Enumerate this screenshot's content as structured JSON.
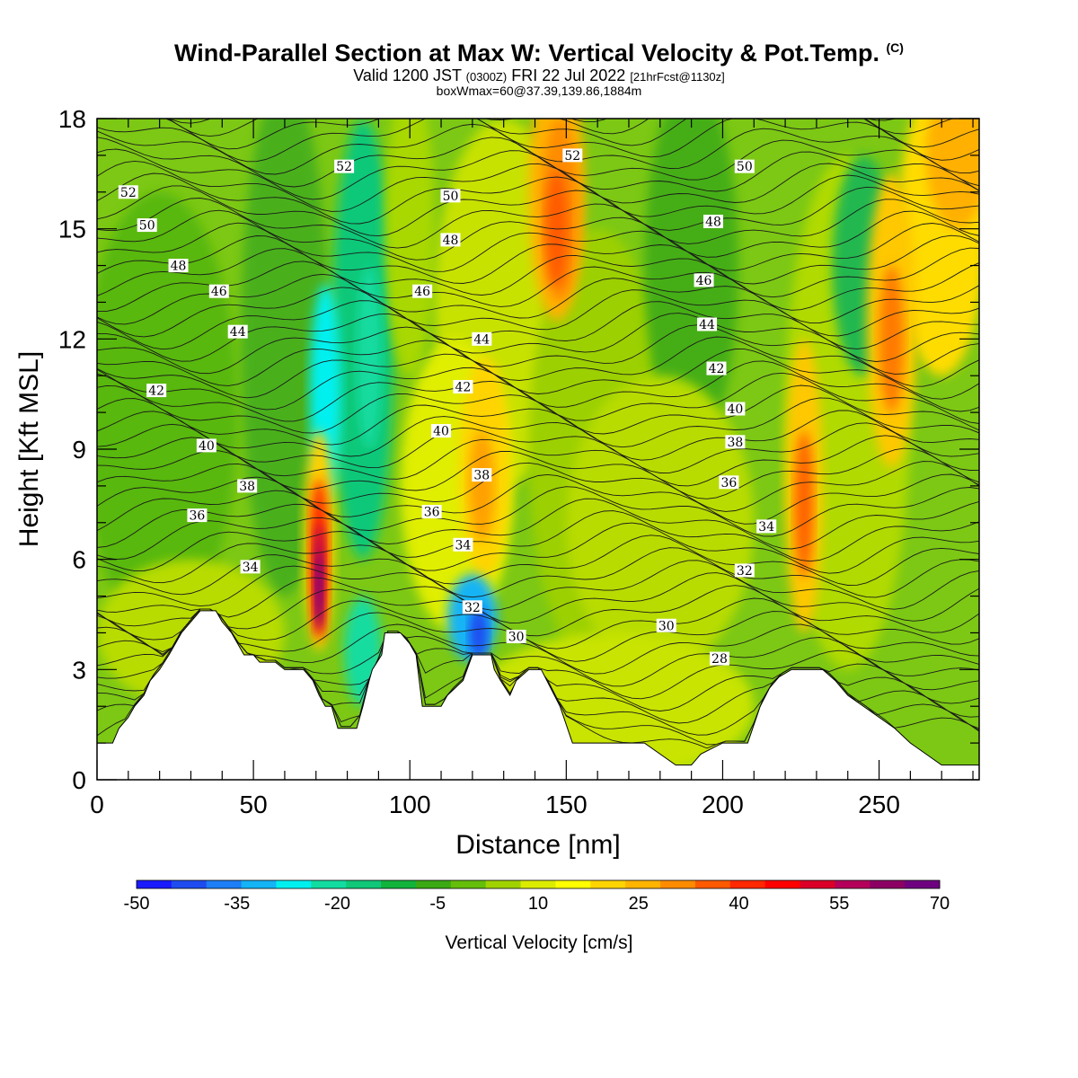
{
  "header": {
    "title": "Wind-Parallel Section at Max W: Vertical Velocity & Pot.Temp.",
    "copyright": "(C)",
    "valid_prefix": "Valid 1200 JST",
    "valid_z": "(0300Z)",
    "valid_date": "FRI 22 Jul 2022",
    "valid_fcst": "[21hrFcst@1130z]",
    "box_info": "boxWmax=60@37.39,139.86,1884m"
  },
  "chart_data": {
    "type": "heatmap",
    "xlabel": "Distance [nm]",
    "ylabel": "Height [Kft MSL]",
    "xlim": [
      0,
      282
    ],
    "ylim": [
      0,
      18
    ],
    "x_ticks": [
      "0",
      "50",
      "100",
      "150",
      "200",
      "250"
    ],
    "y_ticks": [
      "0",
      "3",
      "6",
      "9",
      "12",
      "15",
      "18"
    ],
    "colorbar": {
      "label": "Vertical Velocity [cm/s]",
      "tick_labels": [
        "-50",
        "-35",
        "-20",
        "-5",
        "10",
        "25",
        "40",
        "55",
        "70"
      ],
      "colors": [
        "#1a1aff",
        "#1f4cf0",
        "#1e7ef5",
        "#14b4f5",
        "#00f0f0",
        "#12dca0",
        "#10c878",
        "#12b43c",
        "#3caa14",
        "#64be0a",
        "#a0d200",
        "#dcec00",
        "#ffff00",
        "#ffd400",
        "#ffb400",
        "#ff8c00",
        "#ff5a00",
        "#ff2800",
        "#ff0000",
        "#dc0028",
        "#b4005a",
        "#8c0064",
        "#6e0080"
      ]
    },
    "updraft_cores_cm_s": [
      {
        "distance_nm": 71,
        "height_kft": 5.5,
        "value": 70
      },
      {
        "distance_nm": 147,
        "height_kft": 15.0,
        "value": 40
      },
      {
        "distance_nm": 254,
        "height_kft": 12.0,
        "value": 40
      },
      {
        "distance_nm": 226,
        "height_kft": 7.5,
        "value": 35
      },
      {
        "distance_nm": 122,
        "height_kft": 8.0,
        "value": 25
      }
    ],
    "downdraft_cores_cm_s": [
      {
        "distance_nm": 73,
        "height_kft": 10.5,
        "value": -30
      },
      {
        "distance_nm": 122,
        "height_kft": 4.0,
        "value": -45
      },
      {
        "distance_nm": 87,
        "height_kft": 11.5,
        "value": -25
      }
    ],
    "terrain_profile_kft": [
      [
        0,
        1.0
      ],
      [
        5,
        1.0
      ],
      [
        7,
        1.4
      ],
      [
        10,
        1.7
      ],
      [
        12,
        2.0
      ],
      [
        15,
        2.3
      ],
      [
        17,
        2.7
      ],
      [
        20,
        3.0
      ],
      [
        23,
        3.4
      ],
      [
        25,
        3.7
      ],
      [
        27,
        4.0
      ],
      [
        30,
        4.3
      ],
      [
        33,
        4.6
      ],
      [
        38,
        4.6
      ],
      [
        40,
        4.3
      ],
      [
        43,
        4.0
      ],
      [
        45,
        3.7
      ],
      [
        47,
        3.4
      ],
      [
        50,
        3.4
      ],
      [
        52,
        3.2
      ],
      [
        57,
        3.2
      ],
      [
        60,
        3.0
      ],
      [
        66,
        3.0
      ],
      [
        69,
        2.7
      ],
      [
        71,
        2.3
      ],
      [
        73,
        2.0
      ],
      [
        75,
        2.0
      ],
      [
        77,
        1.4
      ],
      [
        83,
        1.4
      ],
      [
        85,
        2.0
      ],
      [
        87,
        2.7
      ],
      [
        88,
        3.0
      ],
      [
        91,
        3.4
      ],
      [
        92,
        4.0
      ],
      [
        97,
        4.0
      ],
      [
        100,
        3.7
      ],
      [
        102,
        3.4
      ],
      [
        103,
        2.7
      ],
      [
        104,
        2.0
      ],
      [
        110,
        2.0
      ],
      [
        112,
        2.3
      ],
      [
        117,
        2.7
      ],
      [
        120,
        3.4
      ],
      [
        126,
        3.4
      ],
      [
        127,
        3.0
      ],
      [
        129,
        2.7
      ],
      [
        132,
        2.3
      ],
      [
        134,
        2.7
      ],
      [
        138,
        3.0
      ],
      [
        142,
        3.0
      ],
      [
        145,
        2.5
      ],
      [
        148,
        2.0
      ],
      [
        152,
        1.0
      ],
      [
        175,
        1.0
      ],
      [
        180,
        0.7
      ],
      [
        185,
        0.4
      ],
      [
        190,
        0.4
      ],
      [
        193,
        0.7
      ],
      [
        200,
        1.0
      ],
      [
        208,
        1.0
      ],
      [
        212,
        2.0
      ],
      [
        215,
        2.5
      ],
      [
        218,
        2.8
      ],
      [
        222,
        3.0
      ],
      [
        232,
        3.0
      ],
      [
        236,
        2.7
      ],
      [
        240,
        2.3
      ],
      [
        245,
        2.0
      ],
      [
        250,
        1.7
      ],
      [
        255,
        1.4
      ],
      [
        260,
        1.0
      ],
      [
        265,
        0.7
      ],
      [
        270,
        0.4
      ],
      [
        282,
        0.4
      ]
    ],
    "contours_pot_temp": {
      "min": 28,
      "max": 52,
      "labels": [
        {
          "text": "52",
          "x": 10,
          "y": 16.0
        },
        {
          "text": "50",
          "x": 16,
          "y": 15.1
        },
        {
          "text": "48",
          "x": 26,
          "y": 14.0
        },
        {
          "text": "46",
          "x": 39,
          "y": 13.3
        },
        {
          "text": "44",
          "x": 45,
          "y": 12.2
        },
        {
          "text": "42",
          "x": 19,
          "y": 10.6
        },
        {
          "text": "40",
          "x": 35,
          "y": 9.1
        },
        {
          "text": "38",
          "x": 48,
          "y": 8.0
        },
        {
          "text": "36",
          "x": 32,
          "y": 7.2
        },
        {
          "text": "34",
          "x": 49,
          "y": 5.8
        },
        {
          "text": "52",
          "x": 79,
          "y": 16.7
        },
        {
          "text": "50",
          "x": 113,
          "y": 15.9
        },
        {
          "text": "48",
          "x": 113,
          "y": 14.7
        },
        {
          "text": "46",
          "x": 104,
          "y": 13.3
        },
        {
          "text": "44",
          "x": 123,
          "y": 12.0
        },
        {
          "text": "42",
          "x": 117,
          "y": 10.7
        },
        {
          "text": "40",
          "x": 110,
          "y": 9.5
        },
        {
          "text": "38",
          "x": 123,
          "y": 8.3
        },
        {
          "text": "36",
          "x": 107,
          "y": 7.3
        },
        {
          "text": "34",
          "x": 117,
          "y": 6.4
        },
        {
          "text": "32",
          "x": 120,
          "y": 4.7
        },
        {
          "text": "30",
          "x": 134,
          "y": 3.9
        },
        {
          "text": "52",
          "x": 152,
          "y": 17.0
        },
        {
          "text": "50",
          "x": 207,
          "y": 16.7
        },
        {
          "text": "48",
          "x": 197,
          "y": 15.2
        },
        {
          "text": "46",
          "x": 194,
          "y": 13.6
        },
        {
          "text": "44",
          "x": 195,
          "y": 12.4
        },
        {
          "text": "42",
          "x": 198,
          "y": 11.2
        },
        {
          "text": "40",
          "x": 204,
          "y": 10.1
        },
        {
          "text": "38",
          "x": 204,
          "y": 9.2
        },
        {
          "text": "36",
          "x": 202,
          "y": 8.1
        },
        {
          "text": "34",
          "x": 214,
          "y": 6.9
        },
        {
          "text": "32",
          "x": 207,
          "y": 5.7
        },
        {
          "text": "30",
          "x": 182,
          "y": 4.2
        },
        {
          "text": "28",
          "x": 199,
          "y": 3.3
        }
      ]
    },
    "grid": false
  }
}
